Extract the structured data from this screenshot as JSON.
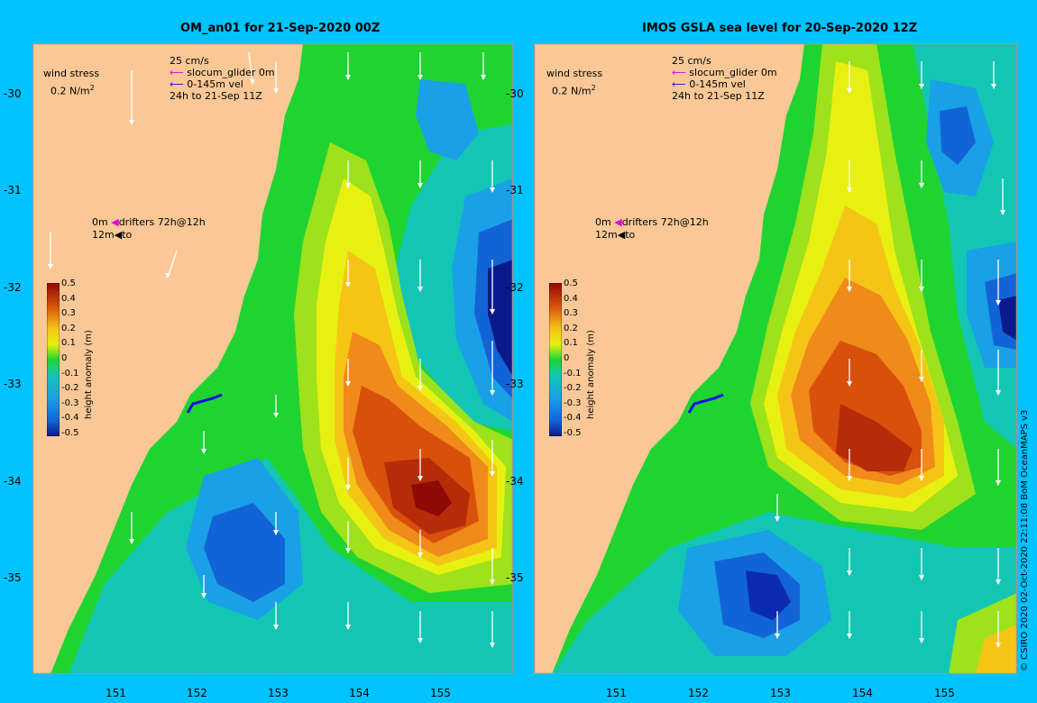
{
  "left_panel": {
    "title": "OM_an01 for 21-Sep-2020 00Z",
    "legend": {
      "wind_stress": "wind stress",
      "wind_unit": "0.2 N/m",
      "wind_unit_sup": "2",
      "speed": "25 cm/s",
      "glider": "slocum_glider 0m",
      "vel": "0-145m vel",
      "period": "24h to 21-Sep 11Z",
      "drifter_0m": "0m",
      "drifter_label": "drifters 72h@12h",
      "drifter_12m": "12m",
      "drifter_to": "to"
    }
  },
  "right_panel": {
    "title": "IMOS GSLA sea level  for 20-Sep-2020 12Z",
    "legend": {
      "wind_stress": "wind stress",
      "wind_unit": "0.2 N/m",
      "wind_unit_sup": "2",
      "speed": "25 cm/s",
      "glider": "slocum_glider 0m",
      "vel": "0-145m vel",
      "period": "24h to 21-Sep 11Z",
      "drifter_0m": "0m",
      "drifter_label": "drifters 72h@12h",
      "drifter_12m": "12m",
      "drifter_to": "to"
    }
  },
  "colorbar": {
    "title": "height anomaly (m)",
    "ticks": [
      "0.5",
      "0.4",
      "0.3",
      "0.2",
      "0.1",
      "0",
      "-0.1",
      "-0.2",
      "-0.3",
      "-0.4",
      "-0.5"
    ]
  },
  "axes": {
    "lat_ticks": [
      "-30",
      "-31",
      "-32",
      "-33",
      "-34",
      "-35"
    ],
    "lon_ticks": [
      "151",
      "152",
      "153",
      "154",
      "155"
    ]
  },
  "credit": "© CSIRO 2020   02-Oct-2020 22:11:08 BoM OceanMAPS v3",
  "colors": {
    "background": "#00c3ff",
    "land": "#f9c896",
    "glider": "#1010e0",
    "drifter_0m": "#e000e0"
  }
}
